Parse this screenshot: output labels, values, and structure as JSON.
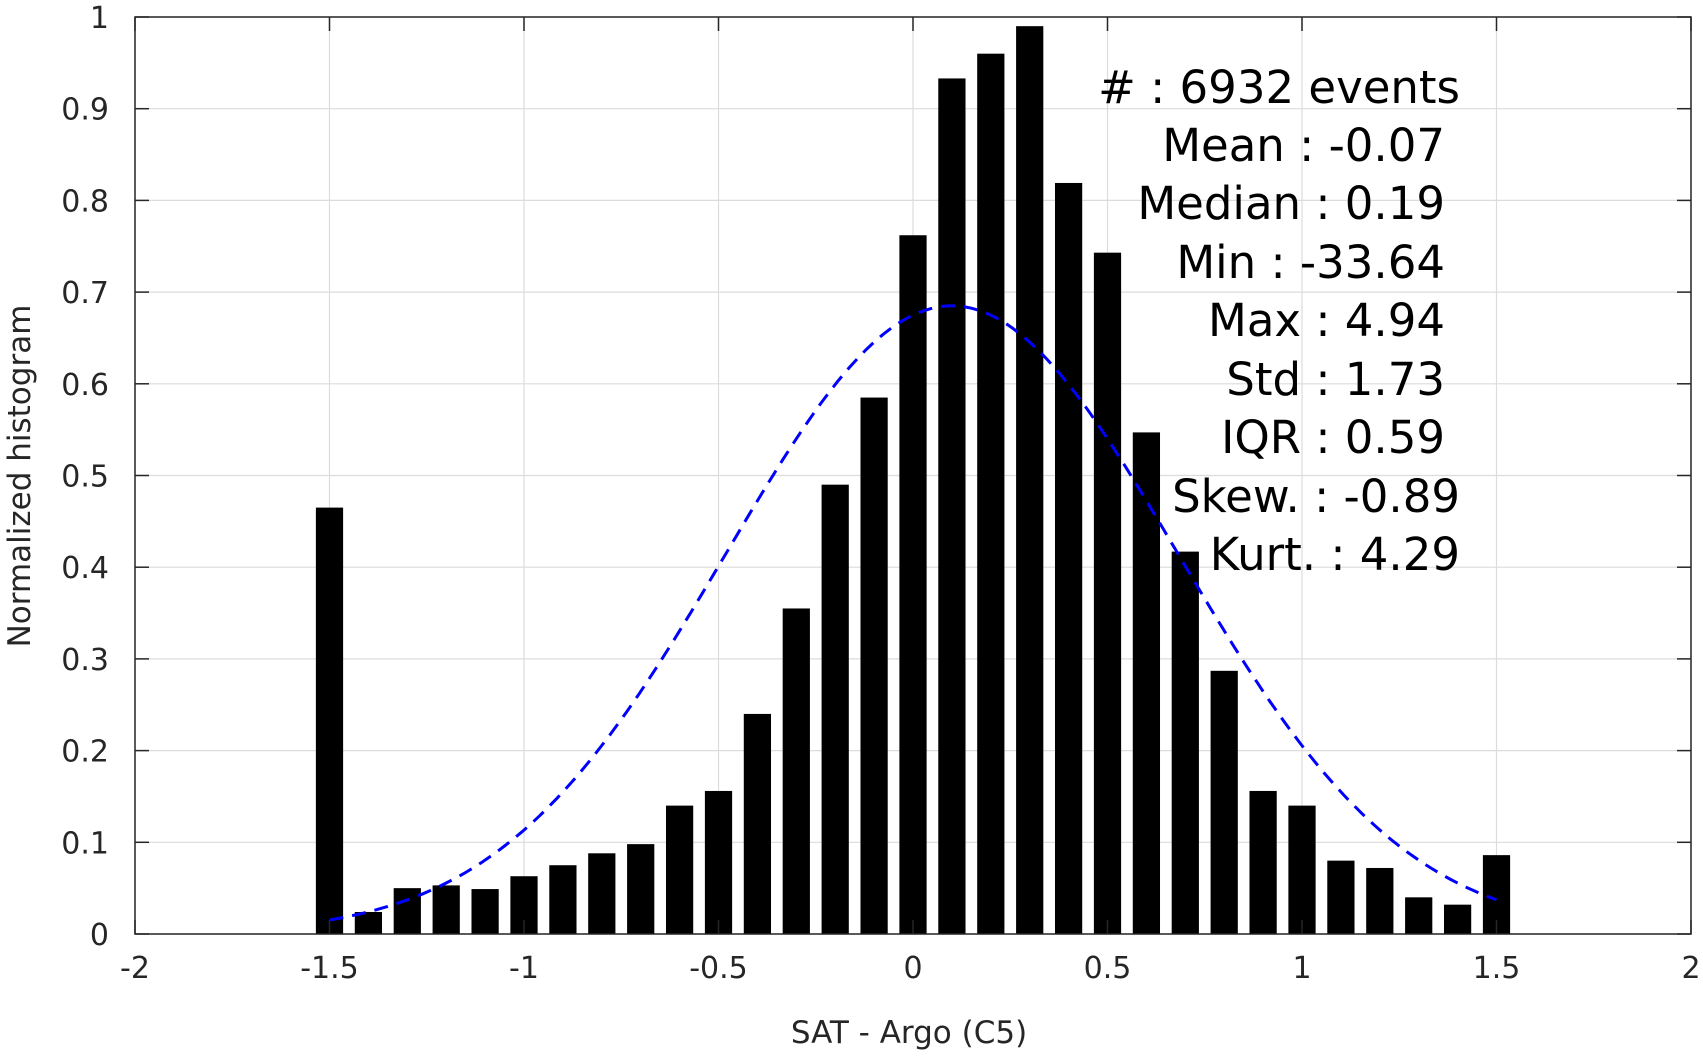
{
  "chart_data": {
    "type": "bar",
    "title": "",
    "xlabel": "SAT - Argo (C5)",
    "ylabel": "Normalized histogram",
    "xlim": [
      -2,
      2
    ],
    "ylim": [
      0,
      1
    ],
    "xticks": [
      -2,
      -1.5,
      -1,
      -0.5,
      0,
      0.5,
      1,
      1.5,
      2
    ],
    "xtick_labels": [
      "-2",
      "-1.5",
      "-1",
      "-0.5",
      "0",
      "0.5",
      "1",
      "1.5",
      "2"
    ],
    "yticks": [
      0,
      0.1,
      0.2,
      0.3,
      0.4,
      0.5,
      0.6,
      0.7,
      0.8,
      0.9,
      1
    ],
    "ytick_labels": [
      "0",
      "0.1",
      "0.2",
      "0.3",
      "0.4",
      "0.5",
      "0.6",
      "0.7",
      "0.8",
      "0.9",
      "1"
    ],
    "grid": true,
    "bar_color": "#000000",
    "x": [
      -1.5,
      -1.4,
      -1.3,
      -1.2,
      -1.1,
      -1.0,
      -0.9,
      -0.8,
      -0.7,
      -0.6,
      -0.5,
      -0.4,
      -0.3,
      -0.2,
      -0.1,
      0.0,
      0.1,
      0.2,
      0.3,
      0.4,
      0.5,
      0.6,
      0.7,
      0.8,
      0.9,
      1.0,
      1.1,
      1.2,
      1.3,
      1.4,
      1.5
    ],
    "values": [
      0.465,
      0.024,
      0.05,
      0.053,
      0.049,
      0.063,
      0.075,
      0.088,
      0.098,
      0.14,
      0.156,
      0.24,
      0.355,
      0.49,
      0.585,
      0.762,
      0.933,
      0.96,
      0.99,
      0.819,
      0.743,
      0.547,
      0.417,
      0.287,
      0.156,
      0.14,
      0.08,
      0.072,
      0.04,
      0.032,
      0.086
    ],
    "fit_curve": {
      "type": "gaussian",
      "color": "#0000ff",
      "style": "dashed",
      "peak": 0.685,
      "center": 0.1,
      "sigma": 0.58,
      "x_range": [
        -1.5,
        1.5
      ]
    },
    "annotations": [
      "#  : 6932 events",
      "Mean : -0.07",
      "Median : 0.19",
      "Min : -33.64",
      "Max : 4.94",
      "Std : 1.73",
      "IQR : 0.59",
      "Skew. : -0.89",
      "Kurt. : 4.29"
    ]
  }
}
